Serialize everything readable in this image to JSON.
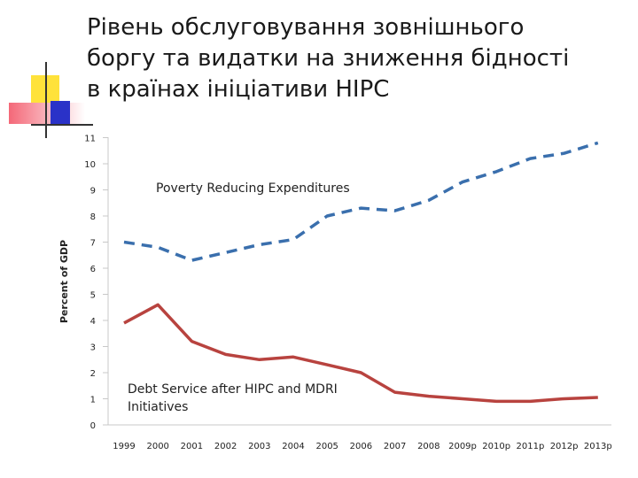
{
  "slide": {
    "title_lines": [
      "Рівень обслуговування зовнішнього",
      "боргу та видатки на зниження бідності",
      "в країнах ініціативи HIPC"
    ],
    "colors": {
      "yellow": "#ffe23a",
      "red": "#f06070",
      "blue": "#2a32c8",
      "line": "#333333"
    }
  },
  "chart_data": {
    "type": "line",
    "title": "",
    "xlabel": "",
    "ylabel": "Percent of GDP",
    "ylim": [
      0,
      11
    ],
    "yticks": [
      0,
      1,
      2,
      3,
      4,
      5,
      6,
      7,
      8,
      9,
      10,
      11
    ],
    "grid": false,
    "categories": [
      "1999",
      "2000",
      "2001",
      "2002",
      "2003",
      "2004",
      "2005",
      "2006",
      "2007",
      "2008",
      "2009p",
      "2010p",
      "2011p",
      "2012p",
      "2013p"
    ],
    "series": [
      {
        "name": "Poverty Reducing Expenditures",
        "label_lines": [
          "Poverty Reducing Expenditures"
        ],
        "color": "#3a6fad",
        "style": "dashed",
        "values": [
          7.0,
          6.8,
          6.3,
          6.6,
          6.9,
          7.1,
          8.0,
          8.3,
          8.2,
          8.6,
          9.3,
          9.7,
          10.2,
          10.4,
          10.8
        ]
      },
      {
        "name": "Debt Service after HIPC and MDRI Initiatives",
        "label_lines": [
          "Debt Service after HIPC and MDRI",
          "Initiatives"
        ],
        "color": "#b8433f",
        "style": "solid",
        "values": [
          3.9,
          4.6,
          3.2,
          2.7,
          2.5,
          2.6,
          2.3,
          2.0,
          1.25,
          1.1,
          1.0,
          0.9,
          0.9,
          1.0,
          1.05
        ]
      }
    ]
  }
}
